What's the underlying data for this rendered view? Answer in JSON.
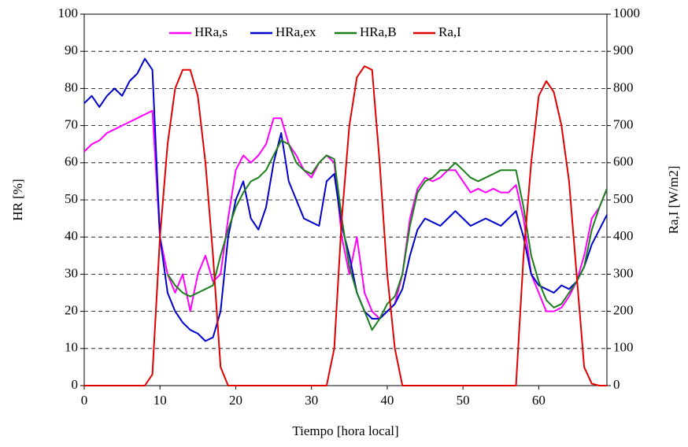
{
  "chart_data": {
    "type": "line",
    "x_label": "Tiempo [hora local]",
    "y_label": "HR [%]",
    "y2_label": "Ra,I [W/m2]",
    "x": [
      0,
      1,
      2,
      3,
      4,
      5,
      6,
      7,
      8,
      9,
      10,
      11,
      12,
      13,
      14,
      15,
      16,
      17,
      18,
      19,
      20,
      21,
      22,
      23,
      24,
      25,
      26,
      27,
      28,
      29,
      30,
      31,
      32,
      33,
      34,
      35,
      36,
      37,
      38,
      39,
      40,
      41,
      42,
      43,
      44,
      45,
      46,
      47,
      48,
      49,
      50,
      51,
      52,
      53,
      54,
      55,
      56,
      57,
      58,
      59,
      60,
      61,
      62,
      63,
      64,
      65,
      66,
      67,
      68,
      69
    ],
    "series": [
      {
        "name": "HRa,s",
        "color": "#ff00ff",
        "values": [
          63,
          65,
          66,
          68,
          69,
          70,
          71,
          72,
          73,
          74,
          40,
          30,
          25,
          30,
          20,
          30,
          35,
          28,
          30,
          45,
          58,
          62,
          60,
          62,
          65,
          72,
          72,
          65,
          62,
          58,
          56,
          60,
          62,
          60,
          40,
          30,
          40,
          25,
          20,
          18,
          20,
          22,
          30,
          45,
          53,
          56,
          55,
          56,
          58,
          58,
          55,
          52,
          53,
          52,
          53,
          52,
          52,
          54,
          45,
          30,
          25,
          20,
          20,
          21,
          24,
          28,
          35,
          45,
          48,
          53
        ]
      },
      {
        "name": "HRa,ex",
        "color": "#0000cc",
        "values": [
          76,
          78,
          75,
          78,
          80,
          78,
          82,
          84,
          88,
          85,
          40,
          25,
          20,
          17,
          15,
          14,
          12,
          13,
          20,
          40,
          50,
          55,
          45,
          42,
          48,
          60,
          68,
          55,
          50,
          45,
          44,
          43,
          55,
          57,
          43,
          35,
          25,
          20,
          18,
          18,
          20,
          22,
          26,
          35,
          42,
          45,
          44,
          43,
          45,
          47,
          45,
          43,
          44,
          45,
          44,
          43,
          45,
          47,
          40,
          30,
          27,
          26,
          25,
          27,
          26,
          28,
          32,
          38,
          42,
          46
        ]
      },
      {
        "name": "HRa,B",
        "color": "#1a7f1a",
        "values": [
          null,
          null,
          null,
          null,
          null,
          null,
          null,
          null,
          null,
          null,
          null,
          30,
          27,
          25,
          24,
          25,
          26,
          27,
          35,
          42,
          48,
          52,
          55,
          56,
          58,
          62,
          66,
          65,
          60,
          58,
          57,
          60,
          62,
          61,
          45,
          32,
          25,
          20,
          15,
          18,
          22,
          24,
          30,
          43,
          52,
          55,
          56,
          58,
          58,
          60,
          58,
          56,
          55,
          56,
          57,
          58,
          58,
          58,
          48,
          35,
          28,
          23,
          21,
          22,
          25,
          28,
          32,
          42,
          48,
          53
        ]
      },
      {
        "name": "Ra,I",
        "color": "#e00000",
        "axis": "y2",
        "values": [
          0,
          0,
          0,
          0,
          0,
          0,
          0,
          0,
          0,
          30,
          400,
          650,
          800,
          850,
          850,
          780,
          600,
          350,
          50,
          0,
          0,
          0,
          0,
          0,
          0,
          0,
          0,
          0,
          0,
          0,
          0,
          0,
          0,
          100,
          450,
          700,
          830,
          860,
          850,
          600,
          300,
          100,
          0,
          0,
          0,
          0,
          0,
          0,
          0,
          0,
          0,
          0,
          0,
          0,
          0,
          0,
          0,
          0,
          350,
          600,
          780,
          820,
          790,
          700,
          550,
          300,
          50,
          5,
          0,
          0
        ]
      }
    ],
    "xlim": [
      0,
      69
    ],
    "xticks": [
      0,
      10,
      20,
      30,
      40,
      50,
      60
    ],
    "ylim": [
      0,
      100
    ],
    "yticks": [
      0,
      10,
      20,
      30,
      40,
      50,
      60,
      70,
      80,
      90,
      100
    ],
    "y2lim": [
      0,
      1000
    ],
    "y2ticks": [
      0,
      100,
      200,
      300,
      400,
      500,
      600,
      700,
      800,
      900,
      1000
    ],
    "grid": true,
    "legend": "top"
  }
}
